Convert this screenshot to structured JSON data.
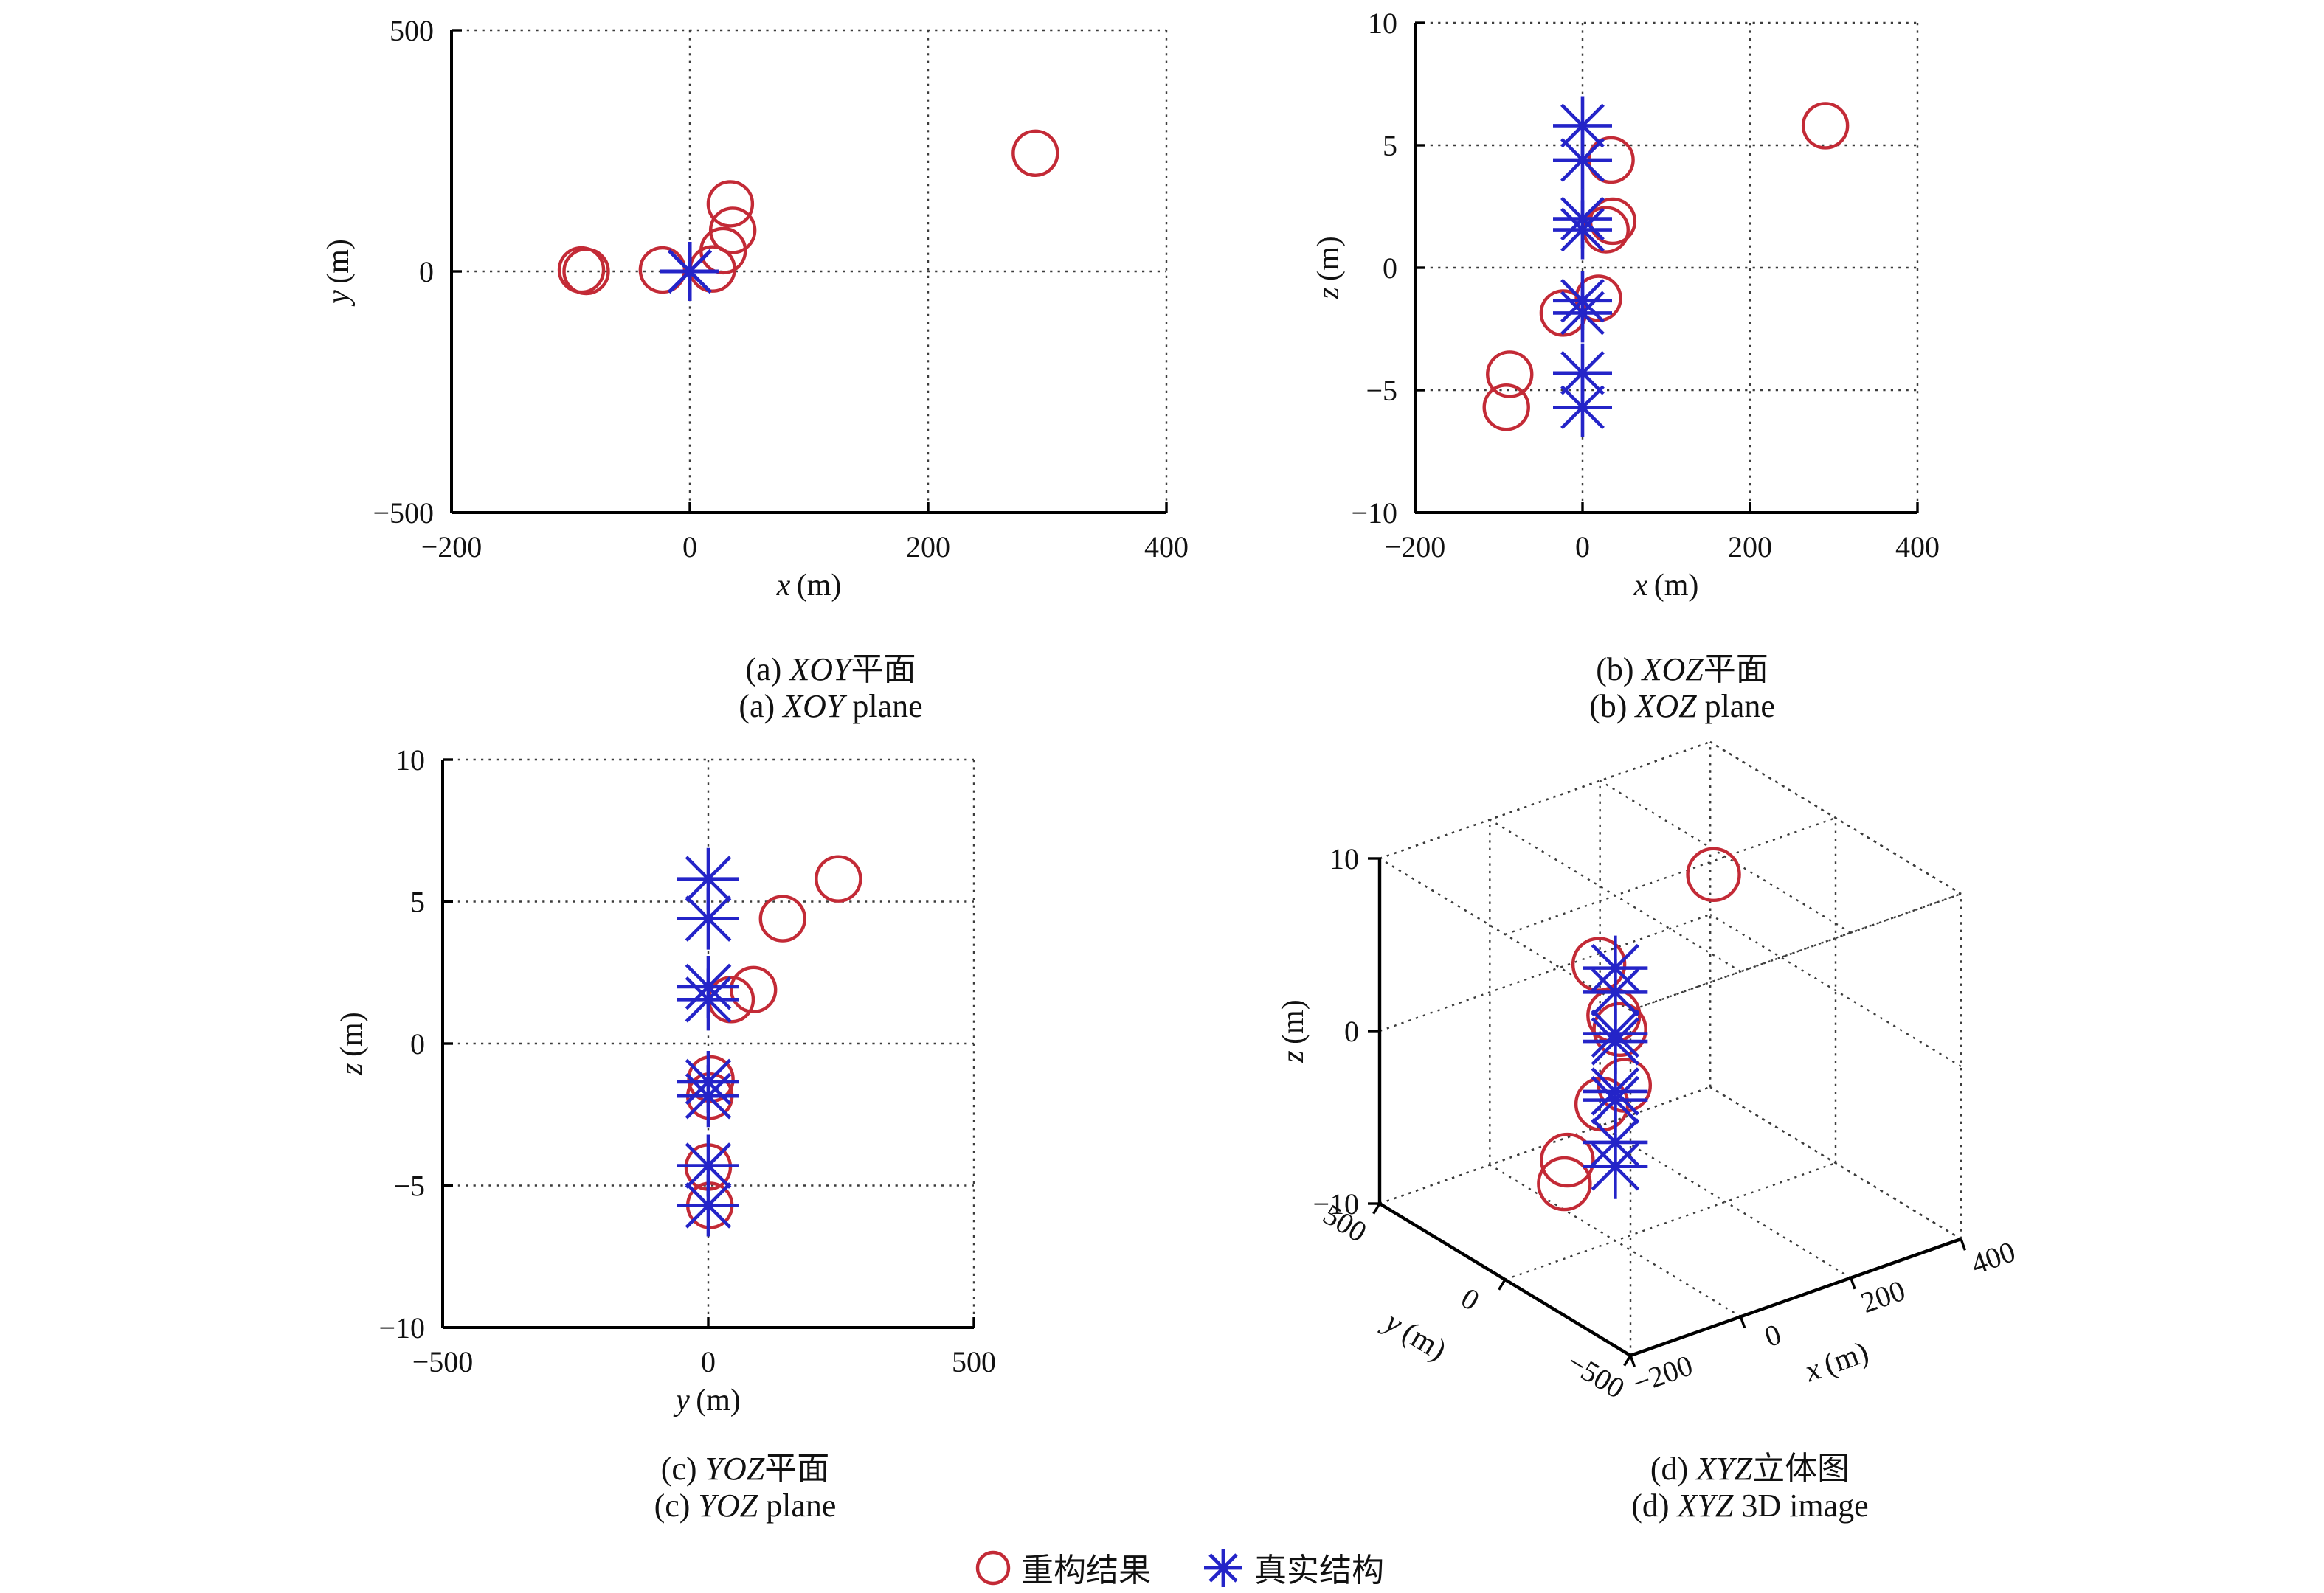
{
  "page": {
    "background": "#ffffff"
  },
  "figure": {
    "captions": {
      "a": {
        "zh_prefix": "(a) ",
        "zh_math": "XOY",
        "zh_rest": "平面",
        "en_prefix": "(a) ",
        "en_math": "XOY",
        "en_rest": " plane"
      },
      "b": {
        "zh_prefix": "(b) ",
        "zh_math": "XOZ",
        "zh_rest": "平面",
        "en_prefix": "(b) ",
        "en_math": "XOZ",
        "en_rest": " plane"
      },
      "c": {
        "zh_prefix": "(c) ",
        "zh_math": "YOZ",
        "zh_rest": "平面",
        "en_prefix": "(c) ",
        "en_math": "YOZ",
        "en_rest": " plane"
      },
      "d": {
        "zh_prefix": "(d) ",
        "zh_math": "XYZ",
        "zh_rest": "立体图",
        "en_prefix": "(d) ",
        "en_math": "XYZ",
        "en_rest": " 3D image"
      }
    }
  },
  "legend": {
    "items": [
      {
        "icon": "circle-marker",
        "label": "重构结果",
        "color": "#c32a36"
      },
      {
        "icon": "asterisk-marker",
        "label": "真实结构",
        "color": "#2424c8"
      }
    ]
  },
  "colors": {
    "reconstruction": "#c32a36",
    "truth": "#2424c8",
    "grid": "#3c3c3c",
    "axis": "#000000"
  },
  "chart_data": [
    {
      "id": "a",
      "type": "scatter",
      "title": "XOY plane",
      "xlabel_var": "x",
      "xlabel_unit": "(m)",
      "ylabel_var": "y",
      "ylabel_unit": "(m)",
      "xlim": [
        -200,
        400
      ],
      "ylim": [
        -500,
        500
      ],
      "grid": "dotted",
      "xticks": {
        "values": [
          -200,
          0,
          200,
          400
        ],
        "labels": [
          "−200",
          "0",
          "200",
          "400"
        ]
      },
      "yticks": {
        "values": [
          500,
          0,
          -500
        ],
        "labels": [
          "500",
          "0",
          "−500"
        ]
      },
      "series": [
        {
          "name": "重构结果",
          "marker": "circle",
          "color": "#c32a36",
          "points": [
            [
              290,
              245
            ],
            [
              34,
              140
            ],
            [
              36,
              85
            ],
            [
              28,
              43
            ],
            [
              19,
              5
            ],
            [
              -23,
              3
            ],
            [
              -87,
              0
            ],
            [
              -91,
              3
            ]
          ]
        },
        {
          "name": "真实结构",
          "marker": "asterisk",
          "color": "#2424c8",
          "points": [
            [
              0,
              0
            ],
            [
              0,
              0
            ],
            [
              0,
              0
            ],
            [
              0,
              0
            ],
            [
              0,
              0
            ],
            [
              0,
              0
            ],
            [
              0,
              0
            ],
            [
              0,
              0
            ]
          ]
        }
      ]
    },
    {
      "id": "b",
      "type": "scatter",
      "title": "XOZ plane",
      "xlabel_var": "x",
      "xlabel_unit": "(m)",
      "ylabel_var": "z",
      "ylabel_unit": "(m)",
      "xlim": [
        -200,
        400
      ],
      "ylim": [
        -10,
        10
      ],
      "grid": "dotted",
      "xticks": {
        "values": [
          -200,
          0,
          200,
          400
        ],
        "labels": [
          "−200",
          "0",
          "200",
          "400"
        ]
      },
      "yticks": {
        "values": [
          10,
          5,
          0,
          -5,
          -10
        ],
        "labels": [
          "10",
          "5",
          "0",
          "−5",
          "−10"
        ]
      },
      "series": [
        {
          "name": "重构结果",
          "marker": "circle",
          "color": "#c32a36",
          "points": [
            [
              290,
              5.8
            ],
            [
              34,
              4.4
            ],
            [
              36,
              1.9
            ],
            [
              28,
              1.55
            ],
            [
              19,
              -1.25
            ],
            [
              -23,
              -1.85
            ],
            [
              -87,
              -4.35
            ],
            [
              -91,
              -5.7
            ]
          ]
        },
        {
          "name": "真实结构",
          "marker": "asterisk",
          "color": "#2424c8",
          "points": [
            [
              0,
              5.8
            ],
            [
              0,
              4.4
            ],
            [
              0,
              2.0
            ],
            [
              0,
              1.55
            ],
            [
              0,
              -1.35
            ],
            [
              0,
              -1.85
            ],
            [
              0,
              -4.3
            ],
            [
              0,
              -5.7
            ]
          ]
        }
      ]
    },
    {
      "id": "c",
      "type": "scatter",
      "title": "YOZ plane",
      "xlabel_var": "y",
      "xlabel_unit": "(m)",
      "ylabel_var": "z",
      "ylabel_unit": "(m)",
      "xlim": [
        -500,
        500
      ],
      "ylim": [
        -10,
        10
      ],
      "grid": "dotted",
      "xticks": {
        "values": [
          -500,
          0,
          500
        ],
        "labels": [
          "−500",
          "0",
          "500"
        ]
      },
      "yticks": {
        "values": [
          10,
          5,
          0,
          -5,
          -10
        ],
        "labels": [
          "10",
          "5",
          "0",
          "−5",
          "−10"
        ]
      },
      "series": [
        {
          "name": "重构结果",
          "marker": "circle",
          "color": "#c32a36",
          "points": [
            [
              245,
              5.8
            ],
            [
              140,
              4.4
            ],
            [
              85,
              1.9
            ],
            [
              43,
              1.55
            ],
            [
              5,
              -1.25
            ],
            [
              3,
              -1.85
            ],
            [
              0,
              -4.35
            ],
            [
              3,
              -5.7
            ]
          ]
        },
        {
          "name": "真实结构",
          "marker": "asterisk",
          "color": "#2424c8",
          "points": [
            [
              0,
              5.8
            ],
            [
              0,
              4.4
            ],
            [
              0,
              2.0
            ],
            [
              0,
              1.55
            ],
            [
              0,
              -1.35
            ],
            [
              0,
              -1.85
            ],
            [
              0,
              -4.3
            ],
            [
              0,
              -5.7
            ]
          ]
        }
      ]
    },
    {
      "id": "d",
      "type": "scatter3d",
      "title": "XYZ 3D image",
      "xlabel_var": "x",
      "xlabel_unit": "(m)",
      "ylabel_var": "y",
      "ylabel_unit": "(m)",
      "zlabel_var": "z",
      "zlabel_unit": "(m)",
      "xlim": [
        -200,
        400
      ],
      "ylim": [
        -500,
        500
      ],
      "zlim": [
        -10,
        10
      ],
      "grid": "dotted",
      "view": "azimuth -37.5, elevation 30",
      "xticks": {
        "values": [
          -200,
          0,
          200,
          400
        ],
        "labels": [
          "−200",
          "0",
          "200",
          "400"
        ]
      },
      "yticks": {
        "values": [
          500,
          0,
          -500
        ],
        "labels": [
          "500",
          "0",
          "−500"
        ]
      },
      "zticks": {
        "values": [
          10,
          0,
          -10
        ],
        "labels": [
          "10",
          "0",
          "−10"
        ]
      },
      "series": [
        {
          "name": "重构结果",
          "marker": "circle",
          "color": "#c32a36",
          "points": [
            [
              290,
              245,
              5.8
            ],
            [
              34,
              140,
              4.4
            ],
            [
              36,
              85,
              1.9
            ],
            [
              28,
              43,
              1.55
            ],
            [
              19,
              5,
              -1.25
            ],
            [
              -23,
              3,
              -1.85
            ],
            [
              -87,
              0,
              -4.35
            ],
            [
              -91,
              3,
              -5.7
            ]
          ]
        },
        {
          "name": "真实结构",
          "marker": "asterisk",
          "color": "#2424c8",
          "points": [
            [
              0,
              0,
              5.8
            ],
            [
              0,
              0,
              4.4
            ],
            [
              0,
              0,
              2.0
            ],
            [
              0,
              0,
              1.55
            ],
            [
              0,
              0,
              -1.35
            ],
            [
              0,
              0,
              -1.85
            ],
            [
              0,
              0,
              -4.3
            ],
            [
              0,
              0,
              -5.7
            ]
          ]
        }
      ]
    }
  ]
}
